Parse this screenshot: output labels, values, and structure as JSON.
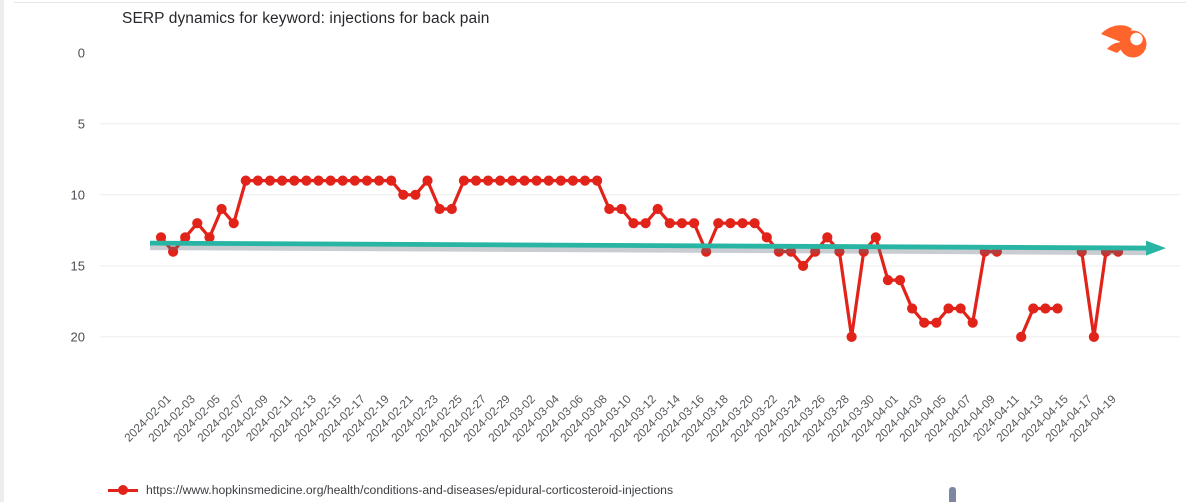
{
  "header": {
    "title": "SERP dynamics for keyword: injections for back pain"
  },
  "branding": {
    "logo_icon": "semrush-logo-icon"
  },
  "legend": {
    "series_label": "https://www.hopkinsmedicine.org/health/conditions-and-diseases/epidural-corticosteroid-injections"
  },
  "colors": {
    "series_red": "#e2231a",
    "trend_teal": "#28b5a3",
    "trend_shadow": "rgba(100,108,122,0.35)",
    "grid": "#ececec",
    "axis_text": "#55585c",
    "logo_orange": "#ff642d",
    "scrollbar": "#7e87a1"
  },
  "chart_data": {
    "type": "line",
    "title": "SERP dynamics for keyword: injections for back pain",
    "inverted_y": true,
    "grid": "horizontal",
    "legend_position": "bottom-left",
    "y_axis": {
      "ticks": [
        0,
        5,
        10,
        15,
        20
      ],
      "range": [
        0,
        22.5
      ],
      "direction": "rank (lower number = higher position)"
    },
    "x_tick_every": 2,
    "x": [
      "2024-02-01",
      "2024-02-02",
      "2024-02-03",
      "2024-02-04",
      "2024-02-05",
      "2024-02-06",
      "2024-02-07",
      "2024-02-08",
      "2024-02-09",
      "2024-02-10",
      "2024-02-11",
      "2024-02-12",
      "2024-02-13",
      "2024-02-14",
      "2024-02-15",
      "2024-02-16",
      "2024-02-17",
      "2024-02-18",
      "2024-02-19",
      "2024-02-20",
      "2024-02-21",
      "2024-02-22",
      "2024-02-23",
      "2024-02-24",
      "2024-02-25",
      "2024-02-26",
      "2024-02-27",
      "2024-02-28",
      "2024-02-29",
      "2024-03-01",
      "2024-03-02",
      "2024-03-03",
      "2024-03-04",
      "2024-03-05",
      "2024-03-06",
      "2024-03-07",
      "2024-03-08",
      "2024-03-09",
      "2024-03-10",
      "2024-03-11",
      "2024-03-12",
      "2024-03-13",
      "2024-03-14",
      "2024-03-15",
      "2024-03-16",
      "2024-03-17",
      "2024-03-18",
      "2024-03-19",
      "2024-03-20",
      "2024-03-21",
      "2024-03-22",
      "2024-03-23",
      "2024-03-24",
      "2024-03-25",
      "2024-03-26",
      "2024-03-27",
      "2024-03-28",
      "2024-03-29",
      "2024-03-30",
      "2024-03-31",
      "2024-04-01",
      "2024-04-02",
      "2024-04-03",
      "2024-04-04",
      "2024-04-05",
      "2024-04-06",
      "2024-04-07",
      "2024-04-08",
      "2024-04-09",
      "2024-04-10",
      "2024-04-11",
      "2024-04-12",
      "2024-04-13",
      "2024-04-14",
      "2024-04-15",
      "2024-04-16",
      "2024-04-17",
      "2024-04-18",
      "2024-04-19",
      "2024-04-20"
    ],
    "series": [
      {
        "name": "https://www.hopkinsmedicine.org/health/conditions-and-diseases/epidural-corticosteroid-injections",
        "color": "#e2231a",
        "values": [
          13,
          14,
          13,
          12,
          13,
          11,
          12,
          9,
          9,
          9,
          9,
          9,
          9,
          9,
          9,
          9,
          9,
          9,
          9,
          9,
          10,
          10,
          9,
          11,
          11,
          9,
          9,
          9,
          9,
          9,
          9,
          9,
          9,
          9,
          9,
          9,
          9,
          11,
          11,
          12,
          12,
          11,
          12,
          12,
          12,
          14,
          12,
          12,
          12,
          12,
          13,
          14,
          14,
          15,
          14,
          13,
          14,
          20,
          14,
          13,
          16,
          16,
          18,
          19,
          19,
          18,
          18,
          19,
          14,
          14,
          null,
          20,
          18,
          18,
          18,
          null,
          14,
          20,
          14,
          14
        ]
      }
    ],
    "trend_line": {
      "shape": "horizontal arrow",
      "start_rank": 13.4,
      "end_rank": 13.75,
      "color": "#28b5a3"
    }
  }
}
